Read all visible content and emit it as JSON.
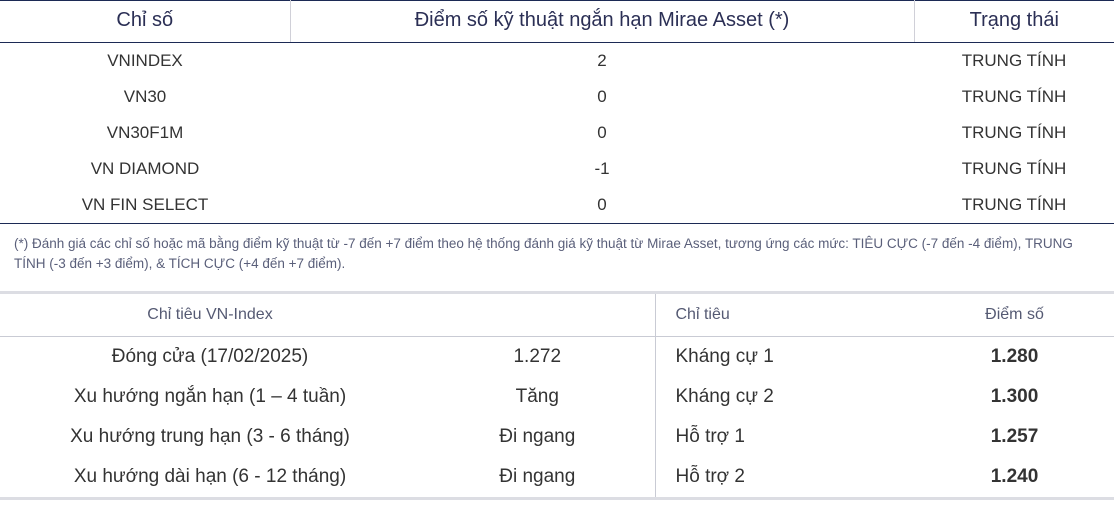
{
  "table1": {
    "headers": {
      "index": "Chỉ số",
      "score": "Điểm số kỹ thuật ngắn hạn Mirae Asset (*)",
      "status": "Trạng thái"
    },
    "rows": [
      {
        "name": "VNINDEX",
        "score": "2",
        "status": "TRUNG TÍNH"
      },
      {
        "name": "VN30",
        "score": "0",
        "status": "TRUNG TÍNH"
      },
      {
        "name": "VN30F1M",
        "score": "0",
        "status": "TRUNG TÍNH"
      },
      {
        "name": "VN DIAMOND",
        "score": "-1",
        "status": "TRUNG TÍNH"
      },
      {
        "name": "VN FIN SELECT",
        "score": "0",
        "status": "TRUNG TÍNH"
      }
    ]
  },
  "footnote": "(*) Đánh giá các chỉ số hoặc mã bằng điểm kỹ thuật từ -7 đến +7 điểm theo hệ thống đánh giá kỹ thuật từ Mirae Asset, tương ứng các mức: TIÊU CỰC (-7 đến -4 điểm), TRUNG TÍNH (-3 đến +3 điểm), & TÍCH CỰC (+4 đến +7 điểm).",
  "table2": {
    "headers": {
      "left_label": "Chỉ tiêu VN-Index",
      "right_label": "Chỉ tiêu",
      "right_value": "Điểm số"
    },
    "left": [
      {
        "label": "Đóng cửa (17/02/2025)",
        "value": "1.272"
      },
      {
        "label": "Xu hướng ngắn hạn (1 – 4 tuần)",
        "value": "Tăng"
      },
      {
        "label": "Xu hướng trung hạn (3 - 6 tháng)",
        "value": "Đi ngang"
      },
      {
        "label": "Xu hướng dài hạn (6 - 12 tháng)",
        "value": "Đi ngang"
      }
    ],
    "right": [
      {
        "label": "Kháng cự 1",
        "value": "1.280",
        "colorClass": "red"
      },
      {
        "label": "Kháng cự 2",
        "value": "1.300",
        "colorClass": "red"
      },
      {
        "label": "Hỗ trợ 1",
        "value": "1.257",
        "colorClass": "green"
      },
      {
        "label": "Hỗ trợ 2",
        "value": "1.240",
        "colorClass": "green"
      }
    ],
    "colors": {
      "red": "#e41b13",
      "green": "#178a2e"
    }
  }
}
